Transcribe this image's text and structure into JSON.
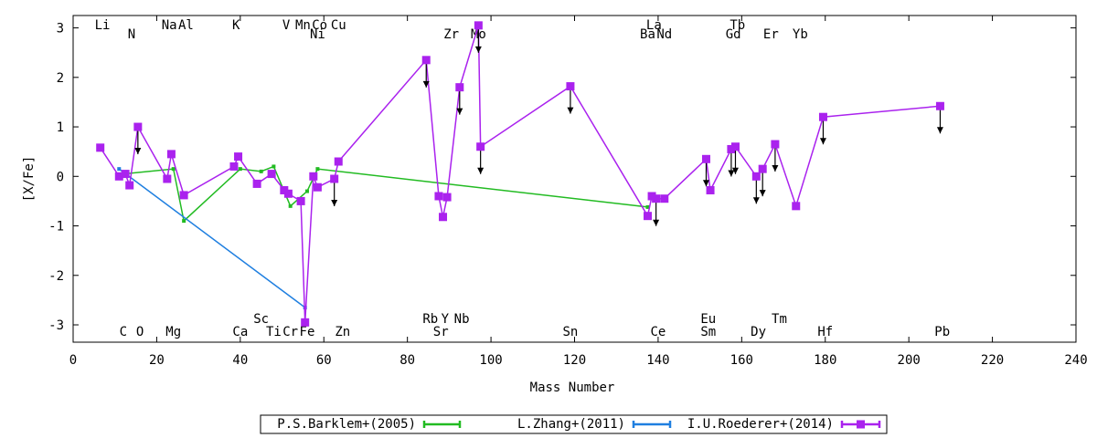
{
  "chart_data": {
    "type": "line",
    "xlabel": "Mass Number",
    "ylabel": "[X/Fe]",
    "xlim": [
      0,
      240
    ],
    "ylim": [
      -3.35,
      3.25
    ],
    "grid": false,
    "legend_position": "bottom",
    "x_ticks": [
      0,
      20,
      40,
      60,
      80,
      100,
      120,
      140,
      160,
      180,
      200,
      220,
      240
    ],
    "y_ticks": [
      -3,
      -2,
      -1,
      0,
      1,
      2,
      3
    ],
    "element_labels": [
      {
        "text": "Li",
        "x": 7,
        "row": "top1"
      },
      {
        "text": "N",
        "x": 14,
        "row": "top2"
      },
      {
        "text": "Na",
        "x": 23,
        "row": "top1"
      },
      {
        "text": "Al",
        "x": 27,
        "row": "top1"
      },
      {
        "text": "K",
        "x": 39,
        "row": "top1"
      },
      {
        "text": "V",
        "x": 51,
        "row": "top1"
      },
      {
        "text": "Mn",
        "x": 55,
        "row": "top1"
      },
      {
        "text": "Co",
        "x": 59,
        "row": "top1"
      },
      {
        "text": "Ni",
        "x": 58.5,
        "row": "top2"
      },
      {
        "text": "Cu",
        "x": 63.5,
        "row": "top1"
      },
      {
        "text": "Zr",
        "x": 90.5,
        "row": "top2"
      },
      {
        "text": "Mo",
        "x": 97,
        "row": "top2"
      },
      {
        "text": "La",
        "x": 139,
        "row": "top1"
      },
      {
        "text": "Ba",
        "x": 137.5,
        "row": "top2"
      },
      {
        "text": "Nd",
        "x": 141.5,
        "row": "top2"
      },
      {
        "text": "Tb",
        "x": 159,
        "row": "top1"
      },
      {
        "text": "Gd",
        "x": 158,
        "row": "top2"
      },
      {
        "text": "Er",
        "x": 167,
        "row": "top2"
      },
      {
        "text": "Yb",
        "x": 174,
        "row": "top2"
      },
      {
        "text": "Sc",
        "x": 45,
        "row": "bot1"
      },
      {
        "text": "Rb",
        "x": 85.5,
        "row": "bot1"
      },
      {
        "text": "Y",
        "x": 89,
        "row": "bot1"
      },
      {
        "text": "Nb",
        "x": 93,
        "row": "bot1"
      },
      {
        "text": "Eu",
        "x": 152,
        "row": "bot1"
      },
      {
        "text": "Tm",
        "x": 169,
        "row": "bot1"
      },
      {
        "text": "C",
        "x": 12,
        "row": "bot2"
      },
      {
        "text": "O",
        "x": 16,
        "row": "bot2"
      },
      {
        "text": "Mg",
        "x": 24,
        "row": "bot2"
      },
      {
        "text": "Ca",
        "x": 40,
        "row": "bot2"
      },
      {
        "text": "Ti",
        "x": 48,
        "row": "bot2"
      },
      {
        "text": "Cr",
        "x": 52,
        "row": "bot2"
      },
      {
        "text": "Fe",
        "x": 56,
        "row": "bot2"
      },
      {
        "text": "Zn",
        "x": 64.5,
        "row": "bot2"
      },
      {
        "text": "Sr",
        "x": 88,
        "row": "bot2"
      },
      {
        "text": "Sn",
        "x": 119,
        "row": "bot2"
      },
      {
        "text": "Ce",
        "x": 140,
        "row": "bot2"
      },
      {
        "text": "Sm",
        "x": 152,
        "row": "bot2"
      },
      {
        "text": "Dy",
        "x": 164,
        "row": "bot2"
      },
      {
        "text": "Hf",
        "x": 180,
        "row": "bot2"
      },
      {
        "text": "Pb",
        "x": 208,
        "row": "bot2"
      }
    ],
    "series": [
      {
        "name": "P.S.Barklem+(2005)",
        "color": "#22bb22",
        "marker": "errorbar",
        "points": [
          {
            "x": 12,
            "y": 0.05,
            "err": 0.25
          },
          {
            "x": 24,
            "y": 0.15,
            "err": 0.2
          },
          {
            "x": 26.5,
            "y": -0.9,
            "err": 0.28
          },
          {
            "x": 40,
            "y": 0.15,
            "err": 0.18
          },
          {
            "x": 45,
            "y": 0.1,
            "err": 0.2
          },
          {
            "x": 48,
            "y": 0.2,
            "err": 0.22
          },
          {
            "x": 52,
            "y": -0.6,
            "err": 0.15
          },
          {
            "x": 56,
            "y": -0.3,
            "err": 0.2
          },
          {
            "x": 58.5,
            "y": 0.15,
            "err": 0.2
          },
          {
            "x": 137.5,
            "y": -0.62,
            "err": 0.25
          }
        ]
      },
      {
        "name": "L.Zhang+(2011)",
        "color": "#1f7fe0",
        "marker": "errorbar",
        "points": [
          {
            "x": 11,
            "y": 0.15,
            "err": 0.12
          },
          {
            "x": 55.5,
            "y": -2.65,
            "err": 0.15
          }
        ]
      },
      {
        "name": "I.U.Roederer+(2014)",
        "color": "#aa22ee",
        "marker": "square",
        "points": [
          {
            "x": 6.5,
            "y": 0.58,
            "err": 0,
            "ul": false
          },
          {
            "x": 11,
            "y": 0.0,
            "err": 0.15,
            "ul": false
          },
          {
            "x": 12.5,
            "y": 0.05,
            "err": 0.15,
            "ul": false
          },
          {
            "x": 13.5,
            "y": -0.18,
            "err": 0.35,
            "ul": false
          },
          {
            "x": 15.5,
            "y": 1.0,
            "err": 0,
            "ul": true
          },
          {
            "x": 22.5,
            "y": -0.05,
            "err": 0.22,
            "ul": false
          },
          {
            "x": 23.5,
            "y": 0.45,
            "err": 0.2,
            "ul": false
          },
          {
            "x": 26.5,
            "y": -0.38,
            "err": 0.28,
            "ul": false
          },
          {
            "x": 38.5,
            "y": 0.2,
            "err": 0.15,
            "ul": false
          },
          {
            "x": 39.5,
            "y": 0.4,
            "err": 0.18,
            "ul": false
          },
          {
            "x": 44,
            "y": -0.15,
            "err": 0.15,
            "ul": false
          },
          {
            "x": 47.5,
            "y": 0.05,
            "err": 0.15,
            "ul": false
          },
          {
            "x": 50.5,
            "y": -0.28,
            "err": 0.15,
            "ul": false
          },
          {
            "x": 51.5,
            "y": -0.35,
            "err": 0.12,
            "ul": false
          },
          {
            "x": 54.5,
            "y": -0.5,
            "err": 0.15,
            "ul": false
          },
          {
            "x": 55.5,
            "y": -2.95,
            "err": 0.12,
            "ul": false
          },
          {
            "x": 57.5,
            "y": 0.0,
            "err": 0.15,
            "ul": false
          },
          {
            "x": 58.5,
            "y": -0.22,
            "err": 0.15,
            "ul": false
          },
          {
            "x": 62.5,
            "y": -0.05,
            "err": 0,
            "ul": true
          },
          {
            "x": 63.5,
            "y": 0.3,
            "err": 0.12,
            "ul": false
          },
          {
            "x": 84.5,
            "y": 2.35,
            "err": 0,
            "ul": true
          },
          {
            "x": 87.5,
            "y": -0.4,
            "err": 0.18,
            "ul": false
          },
          {
            "x": 88.5,
            "y": -0.82,
            "err": 0.2,
            "ul": false
          },
          {
            "x": 89.5,
            "y": -0.42,
            "err": 0.2,
            "ul": false
          },
          {
            "x": 92.5,
            "y": 1.8,
            "err": 0,
            "ul": true
          },
          {
            "x": 97,
            "y": 3.05,
            "err": 0,
            "ul": true
          },
          {
            "x": 97.5,
            "y": 0.6,
            "err": 0,
            "ul": true
          },
          {
            "x": 119,
            "y": 1.82,
            "err": 0,
            "ul": true
          },
          {
            "x": 137.5,
            "y": -0.8,
            "err": 0.15,
            "ul": false
          },
          {
            "x": 138.5,
            "y": -0.4,
            "err": 0.12,
            "ul": false
          },
          {
            "x": 139.5,
            "y": -0.45,
            "err": 0,
            "ul": true
          },
          {
            "x": 141.5,
            "y": -0.45,
            "err": 0.2,
            "ul": false
          },
          {
            "x": 151.5,
            "y": 0.35,
            "err": 0,
            "ul": true
          },
          {
            "x": 152.5,
            "y": -0.28,
            "err": 0.15,
            "ul": false
          },
          {
            "x": 157.5,
            "y": 0.55,
            "err": 0,
            "ul": true
          },
          {
            "x": 158.5,
            "y": 0.6,
            "err": 0,
            "ul": true
          },
          {
            "x": 163.5,
            "y": 0.0,
            "err": 0,
            "ul": true
          },
          {
            "x": 165,
            "y": 0.15,
            "err": 0,
            "ul": true
          },
          {
            "x": 168,
            "y": 0.65,
            "err": 0,
            "ul": true
          },
          {
            "x": 173,
            "y": -0.6,
            "err": 0.15,
            "ul": false
          },
          {
            "x": 179.5,
            "y": 1.2,
            "err": 0,
            "ul": true
          },
          {
            "x": 207.5,
            "y": 1.42,
            "err": 0,
            "ul": true
          }
        ]
      }
    ]
  }
}
